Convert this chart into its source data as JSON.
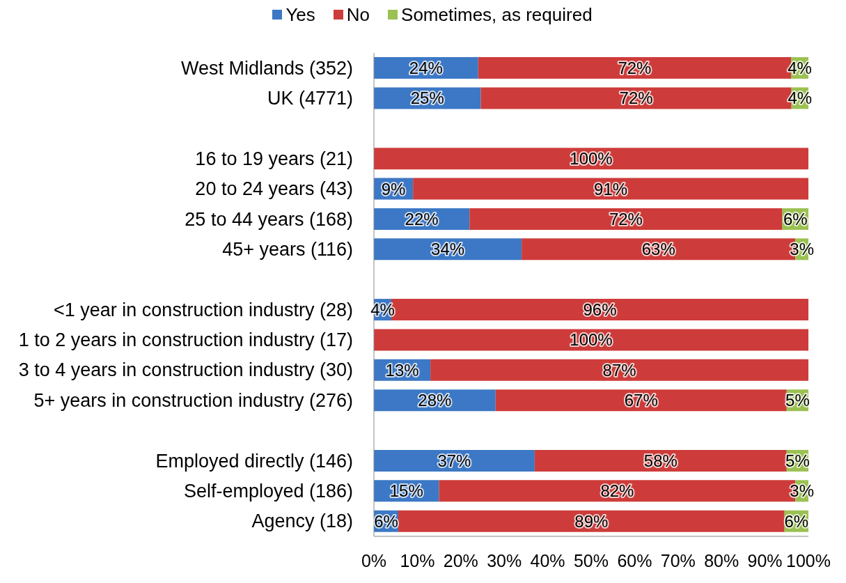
{
  "chart_data": {
    "type": "bar",
    "orientation": "horizontal",
    "stacked": true,
    "legend": "top",
    "categories": [
      "West Midlands (352)",
      "UK (4771)",
      null,
      "16 to 19 years (21)",
      "20 to 24 years (43)",
      "25 to 44 years (168)",
      "45+ years (116)",
      null,
      "<1 year in construction industry (28)",
      "1 to 2 years in construction industry (17)",
      "3 to 4 years in construction industry (30)",
      "5+ years in construction industry (276)",
      null,
      "Employed directly (146)",
      "Self-employed (186)",
      "Agency (18)"
    ],
    "series": [
      {
        "name": "Yes",
        "color": "#3c78c5",
        "values": [
          24,
          24.6,
          null,
          0,
          9,
          22,
          34,
          null,
          4,
          0,
          13,
          28,
          null,
          37,
          15,
          5.6
        ],
        "value_labels": [
          "24%",
          "25%",
          null,
          null,
          "9%",
          "22%",
          "34%",
          null,
          "4%",
          null,
          "13%",
          "28%",
          null,
          "37%",
          "15%",
          "6%"
        ]
      },
      {
        "name": "No",
        "color": "#cd3c3a",
        "values": [
          72,
          71.5,
          null,
          100,
          91,
          72,
          63,
          null,
          96,
          100,
          87,
          67,
          null,
          58,
          82,
          88.9
        ],
        "value_labels": [
          "72%",
          "72%",
          null,
          "100%",
          "91%",
          "72%",
          "63%",
          null,
          "96%",
          "100%",
          "87%",
          "67%",
          null,
          "58%",
          "82%",
          "89%"
        ]
      },
      {
        "name": "Sometimes, as required",
        "color": "#9bc152",
        "values": [
          4,
          3.9,
          null,
          0,
          0,
          6,
          3,
          null,
          0,
          0,
          0,
          5,
          null,
          5,
          3,
          5.5
        ],
        "value_labels": [
          "4%",
          "4%",
          null,
          null,
          null,
          "6%",
          "3%",
          null,
          null,
          null,
          null,
          "5%",
          null,
          "5%",
          "3%",
          "6%"
        ]
      }
    ],
    "xlim": [
      0,
      100
    ],
    "xticks": [
      {
        "value": 0,
        "label": "0%"
      },
      {
        "value": 10,
        "label": "10%"
      },
      {
        "value": 20,
        "label": "20%"
      },
      {
        "value": 30,
        "label": "30%"
      },
      {
        "value": 40,
        "label": "40%"
      },
      {
        "value": 50,
        "label": "50%"
      },
      {
        "value": 60,
        "label": "60%"
      },
      {
        "value": 70,
        "label": "70%"
      },
      {
        "value": 80,
        "label": "80%"
      },
      {
        "value": 90,
        "label": "90%"
      },
      {
        "value": 100,
        "label": "100%"
      }
    ]
  }
}
